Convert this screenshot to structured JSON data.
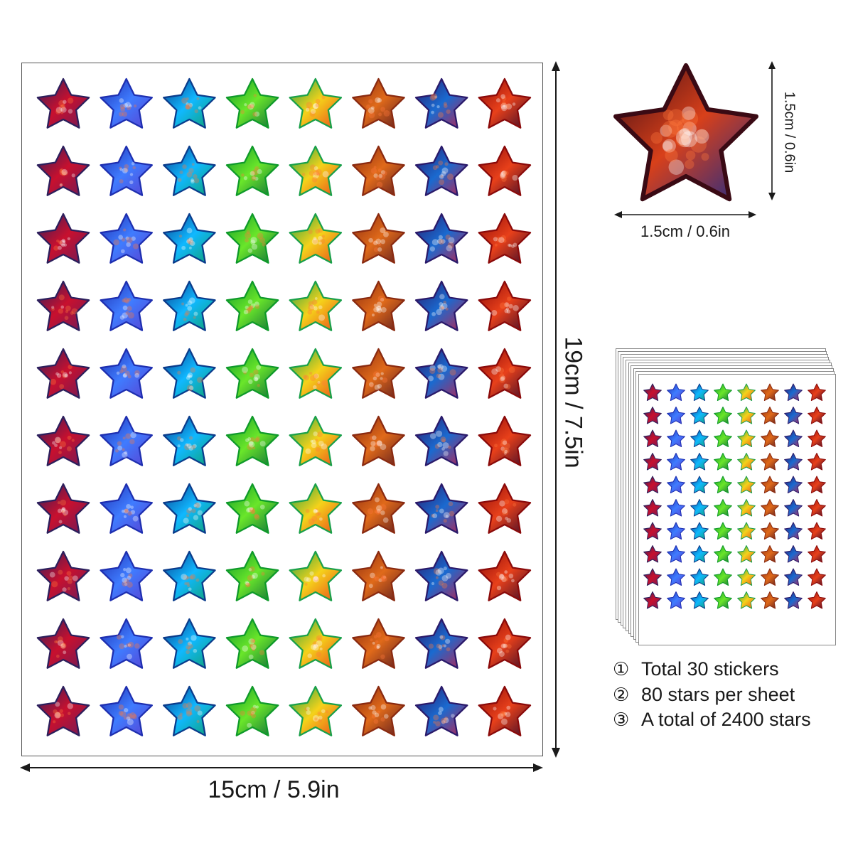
{
  "sheet": {
    "width_label": "15cm / 5.9in",
    "height_label": "19cm / 7.5in",
    "rows": 10,
    "columns": 8,
    "column_palettes": [
      [
        "#2c1f5c",
        "#c8102e",
        "#6a1b5a"
      ],
      [
        "#1e2fb0",
        "#3f7cff",
        "#5a3fd0"
      ],
      [
        "#0a3c8c",
        "#10b8ff",
        "#0fa06a"
      ],
      [
        "#0f9a2a",
        "#6ae62a",
        "#0a6a3a"
      ],
      [
        "#1aa04a",
        "#f5d21a",
        "#e84a1a"
      ],
      [
        "#8a2a10",
        "#e06a1a",
        "#5a1a20"
      ],
      [
        "#2a1a6a",
        "#1a6ad0",
        "#c0204a"
      ],
      [
        "#8a0a0a",
        "#e8401a",
        "#3a0a2a"
      ]
    ]
  },
  "single_sticker": {
    "width_label": "1.5cm / 0.6in",
    "height_label": "1.5cm / 0.6in",
    "colors": [
      "#3a0a14",
      "#d8401a",
      "#1a2a8a"
    ]
  },
  "stack": {
    "sheet_count_visible": 10
  },
  "features": [
    {
      "marker": "①",
      "text": "Total 30 stickers"
    },
    {
      "marker": "②",
      "text": "80 stars per sheet"
    },
    {
      "marker": "③",
      "text": "A total of 2400 stars"
    }
  ]
}
